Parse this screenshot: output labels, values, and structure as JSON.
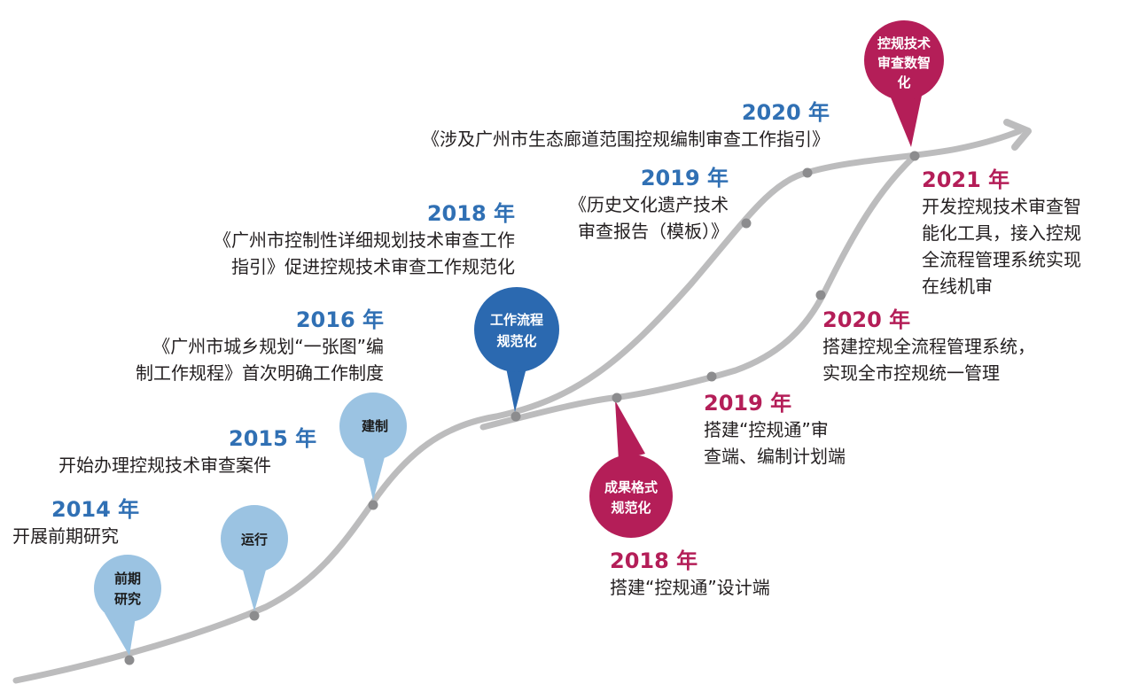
{
  "colors": {
    "curve": "#bcbcbd",
    "dot": "#8c8c8e",
    "bubble_light_blue": "#9bc3e2",
    "bubble_dark_blue": "#2b69b0",
    "bubble_magenta": "#b41e58",
    "year_blue": "#3070b4",
    "year_red": "#b41e58",
    "text": "#231f20"
  },
  "bubbles": {
    "preliminary": [
      "前期",
      "研究"
    ],
    "operation": [
      "运行"
    ],
    "establish": [
      "建制"
    ],
    "workflow": [
      "工作流程",
      "规范化"
    ],
    "output_format": [
      "成果格式",
      "规范化"
    ],
    "digital": [
      "控规技术",
      "审查数智",
      "化"
    ]
  },
  "milestones": {
    "y2014": {
      "year": "2014 年",
      "lines": [
        "开展前期研究"
      ]
    },
    "y2015": {
      "year": "2015 年",
      "lines": [
        "开始办理控规技术审查案件"
      ]
    },
    "y2016": {
      "year": "2016 年",
      "lines": [
        "《广州市城乡规划“一张图”编",
        "制工作规程》首次明确工作制度"
      ]
    },
    "y2018a": {
      "year": "2018 年",
      "lines": [
        "《广州市控制性详细规划技术审查工作",
        "指引》促进控规技术审查工作规范化"
      ]
    },
    "y2019a": {
      "year": "2019 年",
      "lines": [
        "《历史文化遗产技术",
        "审查报告（模板）》"
      ]
    },
    "y2020a": {
      "year": "2020 年",
      "lines": [
        "《涉及广州市生态廊道范围控规编制审查工作指引》"
      ]
    },
    "y2018b": {
      "year": "2018 年",
      "lines": [
        "搭建“控规通”设计端"
      ]
    },
    "y2019b": {
      "year": "2019 年",
      "lines": [
        "搭建“控规通”审",
        "查端、编制计划端"
      ]
    },
    "y2020b": {
      "year": "2020 年",
      "lines": [
        "搭建控规全流程管理系统，",
        "实现全市控规统一管理"
      ]
    },
    "y2021": {
      "year": "2021 年",
      "lines": [
        "开发控规技术审查智",
        "能化工具，接入控规",
        "全流程管理系统实现",
        "在线机审"
      ]
    }
  }
}
